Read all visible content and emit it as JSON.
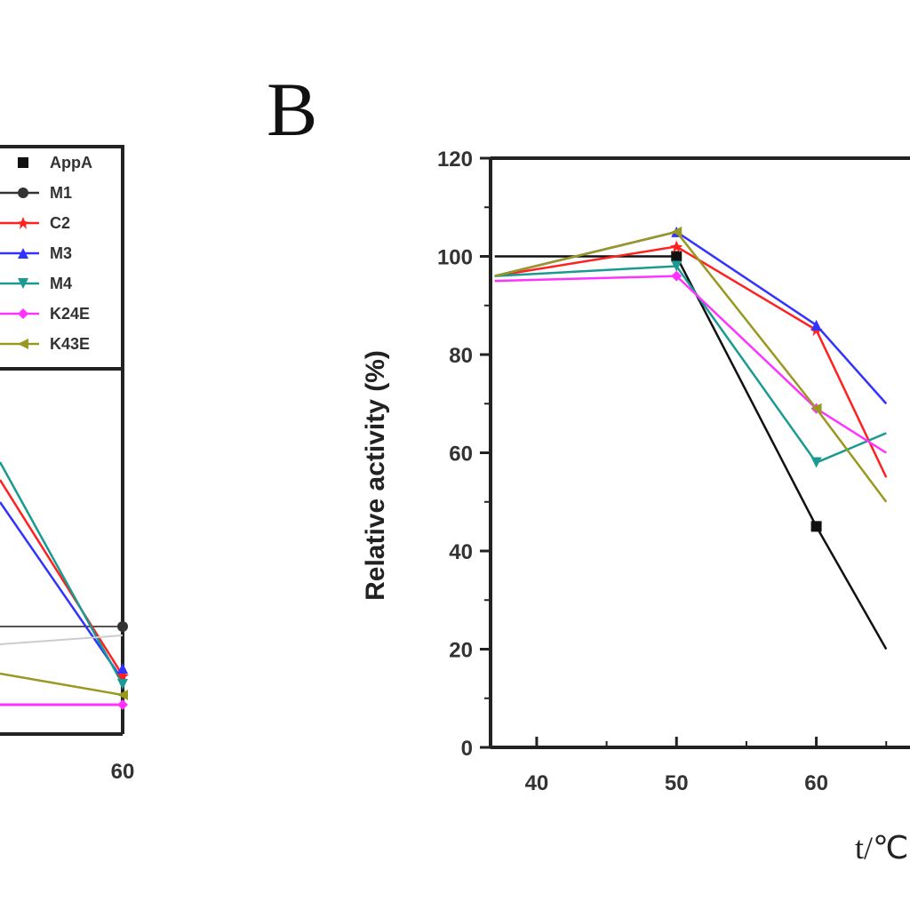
{
  "chart_data": [
    {
      "panel": "A",
      "type": "line",
      "x": [
        60
      ],
      "x_tick_labels": [
        "60"
      ],
      "legend": [
        "AppA",
        "M1",
        "C2",
        "M3",
        "M4",
        "K24E",
        "K43E"
      ],
      "series": [
        {
          "name": "AppA",
          "color": "#111111",
          "marker": "square"
        },
        {
          "name": "M1",
          "color": "#333333",
          "marker": "circle"
        },
        {
          "name": "C2",
          "color": "#ff2020",
          "marker": "star"
        },
        {
          "name": "M3",
          "color": "#3333ff",
          "marker": "triangle-up"
        },
        {
          "name": "M4",
          "color": "#1a9a90",
          "marker": "triangle-down"
        },
        {
          "name": "K24E",
          "color": "#ff33ff",
          "marker": "diamond"
        },
        {
          "name": "K43E",
          "color": "#999922",
          "marker": "triangle-left"
        }
      ]
    },
    {
      "panel": "B",
      "type": "line",
      "xlabel": "t/℃",
      "ylabel": "Relative activity (%)",
      "ylim": [
        0,
        120
      ],
      "x": [
        37,
        50,
        60,
        65
      ],
      "x_tick_labels": [
        "40",
        "50",
        "60"
      ],
      "y_tick_labels": [
        "0",
        "20",
        "40",
        "60",
        "80",
        "100",
        "120"
      ],
      "series": [
        {
          "name": "AppA",
          "color": "#111111",
          "values": [
            100,
            100,
            45,
            20
          ]
        },
        {
          "name": "C2",
          "color": "#ff2020",
          "values": [
            96,
            102,
            85,
            55
          ]
        },
        {
          "name": "M3",
          "color": "#3333ff",
          "values": [
            96,
            105,
            86,
            70
          ]
        },
        {
          "name": "M4",
          "color": "#1a9a90",
          "values": [
            96,
            98,
            58,
            64
          ]
        },
        {
          "name": "K24E",
          "color": "#ff33ff",
          "values": [
            95,
            96,
            69,
            60
          ]
        },
        {
          "name": "K43E",
          "color": "#999922",
          "values": [
            96,
            105,
            69,
            50
          ]
        }
      ]
    }
  ],
  "panel_b_letter": "B"
}
